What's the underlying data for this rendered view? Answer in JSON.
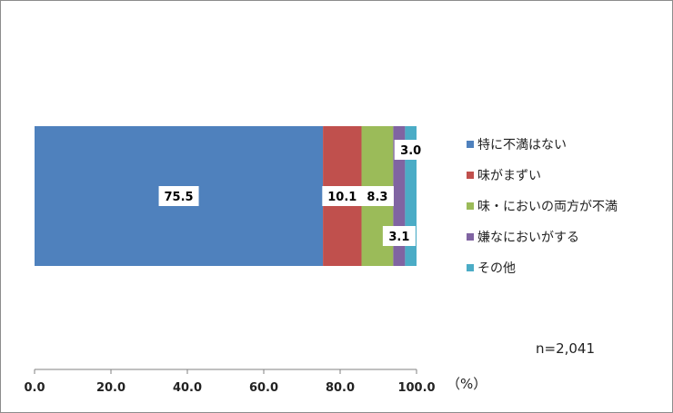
{
  "chart_data": {
    "type": "bar",
    "orientation": "horizontal",
    "stacked": true,
    "categories": [
      ""
    ],
    "series": [
      {
        "name": "特に不満はない",
        "values": [
          75.5
        ],
        "color": "#4F81BD"
      },
      {
        "name": "味がまずい",
        "values": [
          10.1
        ],
        "color": "#C0504D"
      },
      {
        "name": "味・においの両方が不満",
        "values": [
          8.3
        ],
        "color": "#9BBB59"
      },
      {
        "name": "嫌なにおいがする",
        "values": [
          3.1
        ],
        "color": "#8064A2"
      },
      {
        "name": "その他",
        "values": [
          3.0
        ],
        "color": "#4BACC6"
      }
    ],
    "data_labels": [
      "75.5",
      "10.1",
      "8.3",
      "3.1",
      "3.0"
    ],
    "xlim": [
      0,
      100
    ],
    "x_ticks": [
      0,
      20,
      40,
      60,
      80,
      100
    ],
    "x_tick_labels": [
      "0.0",
      "20.0",
      "40.0",
      "60.0",
      "80.0",
      "100.0"
    ],
    "xlabel": "（%）",
    "note": "n=2,041",
    "legend_position": "right",
    "grid": false
  }
}
